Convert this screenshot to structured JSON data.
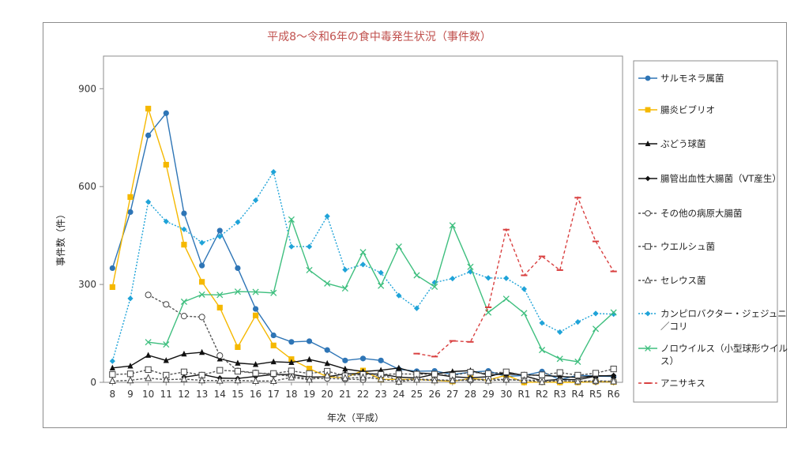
{
  "chart_data": {
    "type": "line",
    "title": "平成8〜令和6年の食中毒発生状況（事件数）",
    "xlabel": "年次（平成）",
    "ylabel": "事件数（件）",
    "ylim": [
      0,
      1000
    ],
    "yticks": [
      0,
      300,
      600,
      900
    ],
    "grid": false,
    "legend_position": "right",
    "categories": [
      "8",
      "9",
      "10",
      "11",
      "12",
      "13",
      "14",
      "15",
      "16",
      "17",
      "18",
      "19",
      "20",
      "21",
      "22",
      "23",
      "24",
      "25",
      "26",
      "27",
      "28",
      "29",
      "30",
      "R1",
      "R2",
      "R3",
      "R4",
      "R5",
      "R6"
    ],
    "series": [
      {
        "name": "サルモネラ属菌",
        "color": "#2e75b6",
        "dash": "",
        "marker": "circle",
        "values": [
          350,
          522,
          757,
          825,
          518,
          358,
          465,
          350,
          225,
          144,
          124,
          126,
          99,
          67,
          73,
          67,
          40,
          34,
          35,
          24,
          31,
          35,
          18,
          21,
          33,
          8,
          22,
          19,
          18
        ]
      },
      {
        "name": "腸炎ビブリオ",
        "color": "#f5b800",
        "dash": "",
        "marker": "square",
        "values": [
          292,
          568,
          839,
          667,
          422,
          308,
          229,
          108,
          205,
          113,
          71,
          42,
          17,
          14,
          36,
          9,
          9,
          9,
          6,
          3,
          12,
          7,
          22,
          0,
          1,
          0,
          0,
          2,
          1
        ]
      },
      {
        "name": "ぶどう球菌",
        "color": "#111111",
        "dash": "",
        "marker": "triangle",
        "values": [
          44,
          50,
          83,
          67,
          87,
          92,
          72,
          59,
          55,
          63,
          61,
          70,
          58,
          41,
          33,
          37,
          44,
          29,
          26,
          33,
          36,
          22,
          26,
          23,
          21,
          18,
          15,
          20,
          20
        ]
      },
      {
        "name": "腸管出血性大腸菌（VT産生）",
        "color": "#111111",
        "dash": "",
        "marker": "diamond",
        "values": [
          null,
          null,
          null,
          null,
          16,
          24,
          13,
          12,
          18,
          24,
          24,
          16,
          17,
          26,
          27,
          25,
          16,
          13,
          25,
          17,
          14,
          17,
          32,
          20,
          5,
          9,
          8,
          19,
          21
        ]
      },
      {
        "name": "その他の病原大腸菌",
        "color": "#555555",
        "dash": "3,2",
        "marker": "circle-open",
        "values": [
          null,
          null,
          268,
          239,
          203,
          200,
          82,
          35,
          29,
          24,
          19,
          11,
          12,
          10,
          8,
          24,
          6,
          10,
          8,
          6,
          6,
          11,
          8,
          7,
          6,
          5,
          3,
          3,
          3
        ]
      },
      {
        "name": "ウエルシュ菌",
        "color": "#555555",
        "dash": "3,2",
        "marker": "square-open",
        "values": [
          24,
          26,
          39,
          22,
          32,
          22,
          37,
          34,
          28,
          27,
          35,
          27,
          34,
          20,
          24,
          24,
          26,
          25,
          25,
          21,
          31,
          27,
          32,
          22,
          23,
          30,
          22,
          28,
          41
        ]
      },
      {
        "name": "セレウス菌",
        "color": "#555555",
        "dash": "3,2",
        "marker": "triangle-open",
        "values": [
          4,
          6,
          13,
          8,
          10,
          6,
          5,
          6,
          4,
          4,
          15,
          8,
          21,
          13,
          15,
          10,
          2,
          8,
          6,
          6,
          9,
          5,
          8,
          6,
          1,
          5,
          3,
          5,
          3
        ]
      },
      {
        "name": "カンピロバクター・ジェジュニ／コリ",
        "color": "#1fa3d8",
        "dash": "2,2",
        "marker": "diamond",
        "values": [
          65,
          257,
          553,
          493,
          469,
          428,
          447,
          491,
          558,
          645,
          416,
          416,
          509,
          345,
          361,
          336,
          266,
          227,
          306,
          318,
          339,
          320,
          319,
          286,
          182,
          154,
          185,
          211,
          209
        ]
      },
      {
        "name": "ノロウイルス（小型球形ウイルス）",
        "color": "#3fbf7f",
        "dash": "",
        "marker": "x",
        "values": [
          null,
          null,
          123,
          116,
          247,
          269,
          268,
          278,
          277,
          274,
          499,
          344,
          303,
          288,
          399,
          296,
          416,
          328,
          293,
          481,
          354,
          214,
          256,
          212,
          99,
          72,
          63,
          164,
          214
        ]
      },
      {
        "name": "アニサキス",
        "color": "#d94040",
        "dash": "4,3",
        "marker": "dash",
        "values": [
          null,
          null,
          null,
          null,
          null,
          null,
          null,
          null,
          null,
          null,
          null,
          null,
          null,
          null,
          null,
          null,
          null,
          88,
          79,
          127,
          124,
          230,
          468,
          328,
          386,
          344,
          566,
          432,
          340
        ]
      }
    ]
  }
}
